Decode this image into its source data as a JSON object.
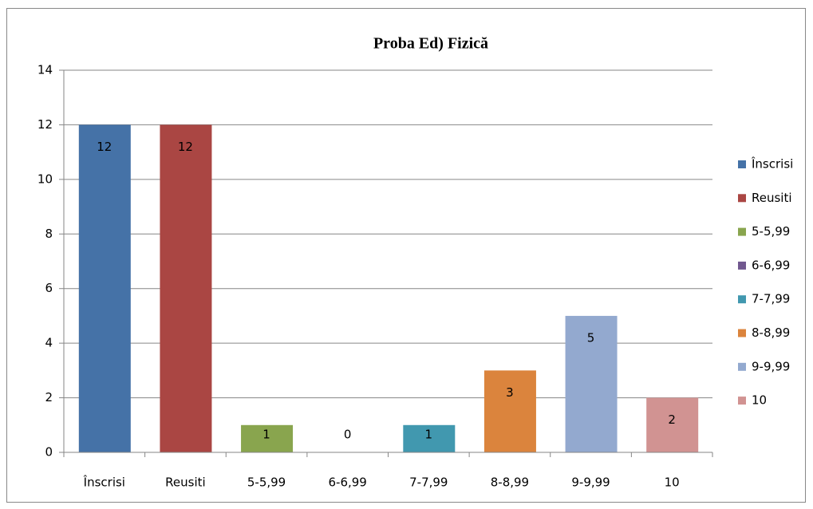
{
  "chart_data": {
    "type": "bar",
    "title": "Proba Ed) Fizică",
    "categories": [
      "Înscrisi",
      "Reusiti",
      "5-5,99",
      "6-6,99",
      "7-7,99",
      "8-8,99",
      "9-9,99",
      "10"
    ],
    "values": [
      12,
      12,
      1,
      0,
      1,
      3,
      5,
      2
    ],
    "colors": [
      "#4572a7",
      "#aa4643",
      "#89a54e",
      "#71588f",
      "#4198af",
      "#db843d",
      "#93a9cf",
      "#d19392"
    ],
    "ylim": [
      0,
      14
    ],
    "yticks": [
      0,
      2,
      4,
      6,
      8,
      10,
      12,
      14
    ],
    "grid": true,
    "legend": "right"
  }
}
